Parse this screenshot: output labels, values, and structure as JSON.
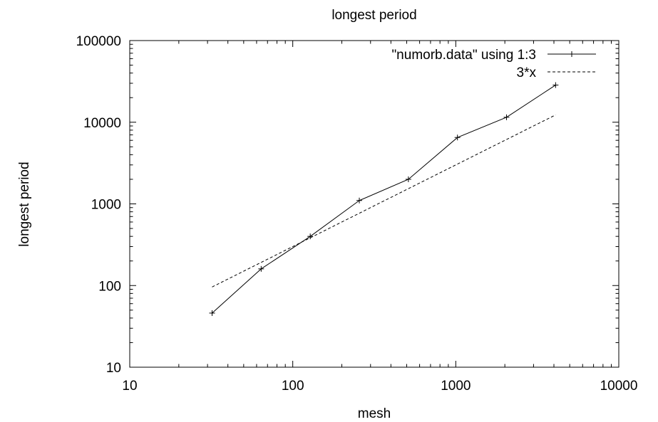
{
  "chart_data": {
    "type": "line",
    "title": "longest period",
    "xlabel": "mesh",
    "ylabel": "longest period",
    "xscale": "log",
    "yscale": "log",
    "xlim": [
      10,
      10000
    ],
    "ylim": [
      10,
      100000
    ],
    "xticks": [
      "10",
      "100",
      "1000",
      "10000"
    ],
    "yticks": [
      "10",
      "100",
      "1000",
      "10000",
      "100000"
    ],
    "grid": false,
    "legend_position": "top-right",
    "series": [
      {
        "name": "\"numorb.data\" using 1:3",
        "style": "solid",
        "marker": "plus",
        "color": "#000000",
        "x": [
          32,
          64,
          128,
          256,
          512,
          1024,
          2048,
          4096
        ],
        "y": [
          46,
          160,
          400,
          1100,
          2000,
          6500,
          11500,
          28500
        ]
      },
      {
        "name": "3*x",
        "style": "dashed",
        "marker": "none",
        "color": "#000000",
        "x": [
          32,
          4096
        ],
        "y": [
          96,
          12288
        ]
      }
    ]
  }
}
